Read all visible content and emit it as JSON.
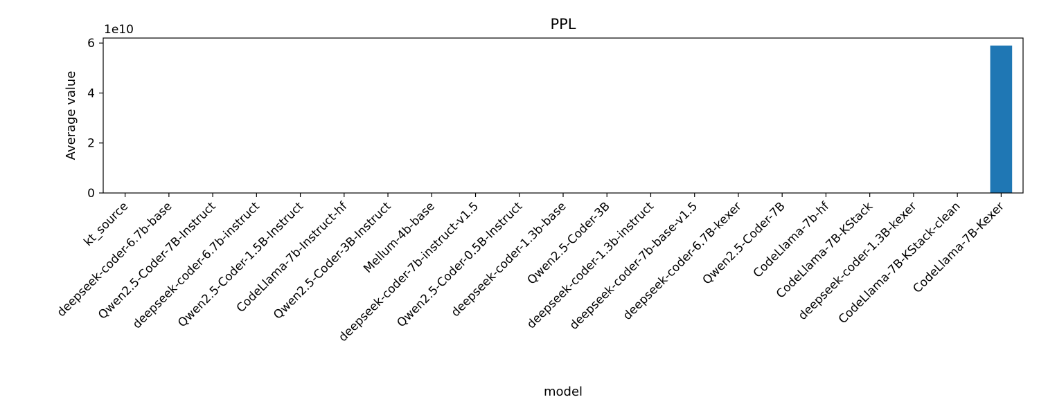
{
  "chart_data": {
    "type": "bar",
    "title": "PPL",
    "xlabel": "model",
    "ylabel": "Average value",
    "offset_label": "1e10",
    "scale": 10000000000,
    "categories": [
      "kt_source",
      "deepseek-coder-6.7b-base",
      "Qwen2.5-Coder-7B-Instruct",
      "deepseek-coder-6.7b-instruct",
      "Qwen2.5-Coder-1.5B-Instruct",
      "CodeLlama-7b-Instruct-hf",
      "Qwen2.5-Coder-3B-Instruct",
      "Mellum-4b-base",
      "deepseek-coder-7b-instruct-v1.5",
      "Qwen2.5-Coder-0.5B-Instruct",
      "deepseek-coder-1.3b-base",
      "Qwen2.5-Coder-3B",
      "deepseek-coder-1.3b-instruct",
      "deepseek-coder-7b-base-v1.5",
      "deepseek-coder-6.7B-kexer",
      "Qwen2.5-Coder-7B",
      "CodeLlama-7b-hf",
      "CodeLlama-7B-KStack",
      "deepseek-coder-1.3B-kexer",
      "CodeLlama-7B-KStack-clean",
      "CodeLlama-7B-Kexer"
    ],
    "values": [
      0,
      0,
      0,
      0,
      0,
      0,
      0,
      0,
      0,
      0,
      0,
      0,
      0,
      0,
      0,
      0,
      0,
      0,
      0,
      0,
      59000000000
    ],
    "ylim": [
      0,
      62000000000
    ],
    "yticks": [
      0,
      2,
      4,
      6
    ],
    "bar_color": "#1f77b4",
    "grid": false,
    "legend": "none"
  }
}
